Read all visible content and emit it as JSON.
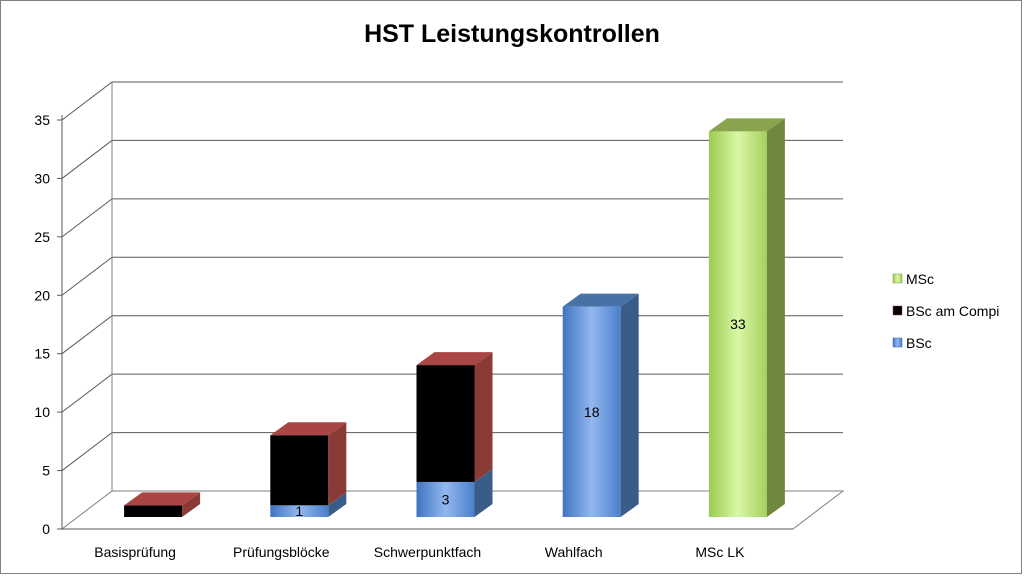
{
  "chart_data": {
    "type": "bar",
    "stacked": true,
    "three_d": true,
    "title": "HST Leistungskontrollen",
    "xlabel": "",
    "ylabel": "",
    "ylim": [
      0,
      35
    ],
    "yticks": [
      0,
      5,
      10,
      15,
      20,
      25,
      30,
      35
    ],
    "grid": true,
    "legend_position": "right",
    "categories": [
      "Basisprüfung",
      "Prüfungsblöcke",
      "Schwerpunktfach",
      "Wahlfach",
      "MSc LK"
    ],
    "series": [
      {
        "name": "BSc",
        "values": [
          0,
          1,
          3,
          18,
          0
        ],
        "color": "#4f81bd"
      },
      {
        "name": "BSc am Compi",
        "values": [
          1,
          6,
          10,
          0,
          0
        ],
        "color": "#c0504d"
      },
      {
        "name": "MSc",
        "values": [
          0,
          0,
          0,
          0,
          33
        ],
        "color": "#9bbb59"
      }
    ],
    "legend_order": [
      "MSc",
      "BSc am Compi",
      "BSc"
    ]
  }
}
